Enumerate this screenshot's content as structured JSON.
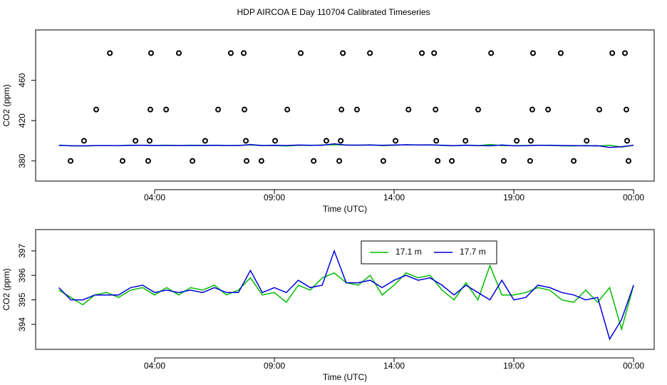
{
  "chart_data": [
    {
      "type": "line",
      "title": "HDP AIRCOA E  Day 110704  Calibrated Timeseries",
      "xlabel": "Time (UTC)",
      "ylabel": "CO2 (ppm)",
      "xlim": [
        -0.97,
        24.86
      ],
      "xticks": [
        {
          "value": 4,
          "label": "04:00"
        },
        {
          "value": 9,
          "label": "09:00"
        },
        {
          "value": 14,
          "label": "14:00"
        },
        {
          "value": 19,
          "label": "19:00"
        },
        {
          "value": 24,
          "label": "00:00"
        }
      ],
      "ylim": [
        360,
        510
      ],
      "yticks": [
        380,
        420,
        460
      ],
      "x": [
        0,
        0.5,
        1,
        1.5,
        2,
        2.5,
        3,
        3.5,
        4,
        4.5,
        5,
        5.5,
        6,
        6.5,
        7,
        7.5,
        8,
        8.5,
        9,
        9.5,
        10,
        10.5,
        11,
        11.5,
        12,
        12.5,
        13,
        13.5,
        14,
        14.5,
        15,
        15.5,
        16,
        16.5,
        17,
        17.5,
        18,
        18.5,
        19,
        19.5,
        20,
        20.5,
        21,
        21.5,
        22,
        22.5,
        23,
        23.5,
        24
      ],
      "series": [
        {
          "type": "line",
          "color": "#00bb00",
          "values": [
            395.4,
            395.1,
            394.8,
            395.2,
            395.3,
            395.1,
            395.4,
            395.5,
            395.2,
            395.5,
            395.2,
            395.5,
            395.4,
            395.6,
            395.2,
            395.4,
            395.9,
            395.2,
            395.3,
            394.9,
            395.6,
            395.4,
            395.9,
            396.1,
            395.7,
            395.6,
            396.0,
            395.2,
            395.6,
            396.1,
            395.9,
            396.0,
            395.4,
            395.0,
            395.7,
            395.0,
            396.4,
            395.2,
            395.2,
            395.3,
            395.5,
            395.4,
            395.0,
            394.9,
            395.4,
            394.9,
            395.5,
            393.8,
            395.6
          ]
        },
        {
          "type": "line",
          "color": "#0000dd",
          "values": [
            395.5,
            395.0,
            395.0,
            395.2,
            395.2,
            395.2,
            395.5,
            395.6,
            395.3,
            395.4,
            395.3,
            395.4,
            395.3,
            395.5,
            395.3,
            395.3,
            396.2,
            395.3,
            395.5,
            395.3,
            395.8,
            395.5,
            395.6,
            397.0,
            395.7,
            395.7,
            395.8,
            395.5,
            395.8,
            396.0,
            395.8,
            395.9,
            395.6,
            395.2,
            395.6,
            395.3,
            395.0,
            395.8,
            395.0,
            395.1,
            395.6,
            395.5,
            395.3,
            395.2,
            395.0,
            395.1,
            393.4,
            394.2,
            395.6
          ]
        },
        {
          "type": "points",
          "color": "#000000",
          "x": [
            0.49,
            1.05,
            1.56,
            2.13,
            2.66,
            3.2,
            3.73,
            3.79,
            3.82,
            3.85,
            4.48,
            5.01,
            5.58,
            6.11,
            6.65,
            7.18,
            7.72,
            7.75,
            7.81,
            7.84,
            8.46,
            9.03,
            9.54,
            10.1,
            10.64,
            11.17,
            11.71,
            11.77,
            11.8,
            11.86,
            12.45,
            12.99,
            13.55,
            14.06,
            14.6,
            15.16,
            15.67,
            15.73,
            15.76,
            15.82,
            16.41,
            16.98,
            17.51,
            18.05,
            18.58,
            19.12,
            19.68,
            19.71,
            19.77,
            19.8,
            20.43,
            20.96,
            21.5,
            22.04,
            22.57,
            23.11,
            23.64,
            23.7,
            23.73,
            23.79
          ],
          "values": [
            380,
            400,
            431,
            487,
            380,
            400,
            380,
            400,
            431,
            487,
            431,
            487,
            380,
            400,
            431,
            487,
            487,
            431,
            400,
            380,
            380,
            400,
            431,
            487,
            380,
            400,
            380,
            400,
            431,
            487,
            431,
            487,
            380,
            400,
            431,
            487,
            487,
            431,
            400,
            380,
            380,
            400,
            431,
            487,
            380,
            400,
            380,
            400,
            431,
            487,
            431,
            487,
            380,
            400,
            431,
            487,
            487,
            431,
            400,
            380
          ]
        }
      ]
    },
    {
      "type": "line",
      "xlabel": "Time (UTC)",
      "ylabel": "CO2 (ppm)",
      "xlim": [
        -0.97,
        24.86
      ],
      "xticks": [
        {
          "value": 4,
          "label": "04:00"
        },
        {
          "value": 9,
          "label": "09:00"
        },
        {
          "value": 14,
          "label": "14:00"
        },
        {
          "value": 19,
          "label": "19:00"
        },
        {
          "value": 24,
          "label": "00:00"
        }
      ],
      "ylim": [
        392.98,
        397.87
      ],
      "yticks": [
        394,
        395,
        396,
        397
      ],
      "legend": "top",
      "x": [
        0,
        0.5,
        1,
        1.5,
        2,
        2.5,
        3,
        3.5,
        4,
        4.5,
        5,
        5.5,
        6,
        6.5,
        7,
        7.5,
        8,
        8.5,
        9,
        9.5,
        10,
        10.5,
        11,
        11.5,
        12,
        12.5,
        13,
        13.5,
        14,
        14.5,
        15,
        15.5,
        16,
        16.5,
        17,
        17.5,
        18,
        18.5,
        19,
        19.5,
        20,
        20.5,
        21,
        21.5,
        22,
        22.5,
        23,
        23.5,
        24
      ],
      "series": [
        {
          "type": "line",
          "name": "17.1 m",
          "color": "#00bb00",
          "values": [
            395.4,
            395.1,
            394.8,
            395.2,
            395.3,
            395.1,
            395.4,
            395.5,
            395.2,
            395.5,
            395.2,
            395.5,
            395.4,
            395.6,
            395.2,
            395.4,
            395.9,
            395.2,
            395.3,
            394.9,
            395.6,
            395.4,
            395.9,
            396.1,
            395.7,
            395.6,
            396.0,
            395.2,
            395.6,
            396.1,
            395.9,
            396.0,
            395.4,
            395.0,
            395.7,
            395.0,
            396.4,
            395.2,
            395.2,
            395.3,
            395.5,
            395.4,
            395.0,
            394.9,
            395.4,
            394.9,
            395.5,
            393.8,
            395.6
          ]
        },
        {
          "type": "line",
          "name": "17.7 m",
          "color": "#0000dd",
          "values": [
            395.5,
            395.0,
            395.0,
            395.2,
            395.2,
            395.2,
            395.5,
            395.6,
            395.3,
            395.4,
            395.3,
            395.4,
            395.3,
            395.5,
            395.3,
            395.3,
            396.2,
            395.3,
            395.5,
            395.3,
            395.8,
            395.5,
            395.6,
            397.0,
            395.7,
            395.7,
            395.8,
            395.5,
            395.8,
            396.0,
            395.8,
            395.9,
            395.6,
            395.2,
            395.6,
            395.3,
            395.0,
            395.8,
            395.0,
            395.1,
            395.6,
            395.5,
            395.3,
            395.2,
            395.0,
            395.1,
            393.4,
            394.2,
            395.6
          ]
        }
      ]
    }
  ]
}
